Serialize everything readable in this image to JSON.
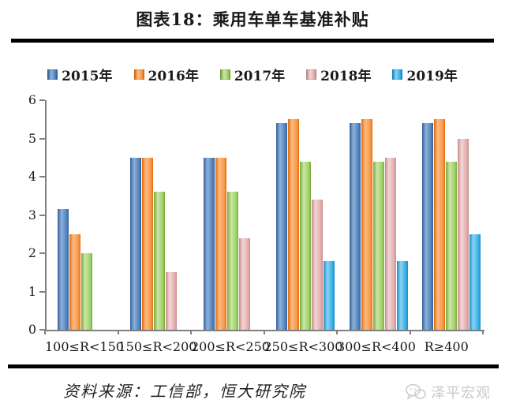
{
  "header": {
    "title": "图表18：乘用车单车基准补贴"
  },
  "chart_data": {
    "type": "bar",
    "title": "图表18：乘用车单车基准补贴",
    "categories": [
      "100≤R<150",
      "150≤R<200",
      "200≤R<250",
      "250≤R<300",
      "300≤R<400",
      "R≥400"
    ],
    "series": [
      {
        "name": "2015年",
        "color": "#4F81BD",
        "light": "#8FB2DB",
        "dark": "#31609A",
        "values": [
          3.15,
          4.5,
          4.5,
          5.4,
          5.4,
          5.4
        ]
      },
      {
        "name": "2016年",
        "color": "#F79646",
        "light": "#FBBC84",
        "dark": "#E26B0A",
        "values": [
          2.5,
          4.5,
          4.5,
          5.5,
          5.5,
          5.5
        ]
      },
      {
        "name": "2017年",
        "color": "#9FD065",
        "light": "#CBE7A8",
        "dark": "#78A93E",
        "values": [
          2.0,
          3.6,
          3.6,
          4.4,
          4.4,
          4.4
        ]
      },
      {
        "name": "2018年",
        "color": "#E3ACAC",
        "light": "#F2D6D6",
        "dark": "#C98C8C",
        "values": [
          0,
          1.5,
          2.4,
          3.4,
          4.5,
          5.0
        ]
      },
      {
        "name": "2019年",
        "color": "#33ADE6",
        "light": "#8AD4F5",
        "dark": "#1C8CC4",
        "values": [
          0,
          0,
          0,
          1.8,
          1.8,
          2.5
        ]
      }
    ],
    "xlabel": "",
    "ylabel": "",
    "ylim": [
      0,
      6
    ],
    "yticks": [
      0,
      1,
      2,
      3,
      4,
      5,
      6
    ],
    "grid": false,
    "legend_position": "top",
    "axis_color": "#808080"
  },
  "footer": {
    "source_label": "资料来源：工信部，恒大研究院",
    "brand": "泽平宏观",
    "brand_icon": "wechat-icon"
  }
}
